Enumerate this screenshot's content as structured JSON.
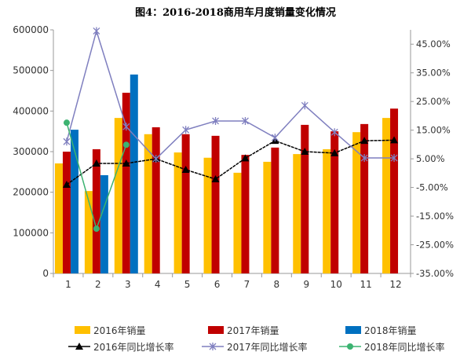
{
  "chart_data": {
    "type": "bar",
    "title": "图4：2016-2018商用车月度销量变化情况",
    "categories": [
      "1",
      "2",
      "3",
      "4",
      "5",
      "6",
      "7",
      "8",
      "9",
      "10",
      "11",
      "12"
    ],
    "ylim": [
      0,
      600000
    ],
    "yticks": [
      "0",
      "100000",
      "200000",
      "300000",
      "400000",
      "500000",
      "600000"
    ],
    "y2lim": [
      -35,
      50
    ],
    "y2ticks": [
      "-35.00%",
      "-25.00%",
      "-15.00%",
      "-5.00%",
      "5.00%",
      "15.00%",
      "25.00%",
      "35.00%",
      "45.00%"
    ],
    "grid": false,
    "legend_placement": "bottom",
    "bar_series": [
      {
        "name": "2016年销量",
        "color": "#FFC000",
        "values": [
          271000,
          203000,
          383000,
          343000,
          298000,
          285000,
          248000,
          275000,
          294000,
          306000,
          348000,
          383000
        ]
      },
      {
        "name": "2017年销量",
        "color": "#C00000",
        "values": [
          300000,
          306000,
          445000,
          360000,
          343000,
          339000,
          292000,
          310000,
          366000,
          350000,
          368000,
          406000
        ]
      },
      {
        "name": "2018年销量",
        "color": "#0070C0",
        "values": [
          354000,
          242000,
          490000
        ]
      }
    ],
    "line_series": [
      {
        "name": "2016年同比增长率",
        "color": "#000000",
        "marker": "triangle",
        "values": [
          -4.0,
          3.4,
          3.4,
          5.0,
          1.2,
          -2.1,
          5.2,
          11.3,
          7.5,
          7.0,
          11.3,
          11.5
        ]
      },
      {
        "name": "2017年同比增长率",
        "color": "#7F7FBF",
        "marker": "star",
        "values": [
          11.0,
          49.6,
          16.2,
          5.0,
          15.1,
          18.2,
          18.2,
          12.4,
          23.6,
          14.3,
          5.3,
          5.3
        ]
      },
      {
        "name": "2018年同比增长率",
        "color": "#3CB371",
        "marker": "circle",
        "values": [
          17.6,
          -19.4,
          9.9
        ]
      }
    ]
  }
}
